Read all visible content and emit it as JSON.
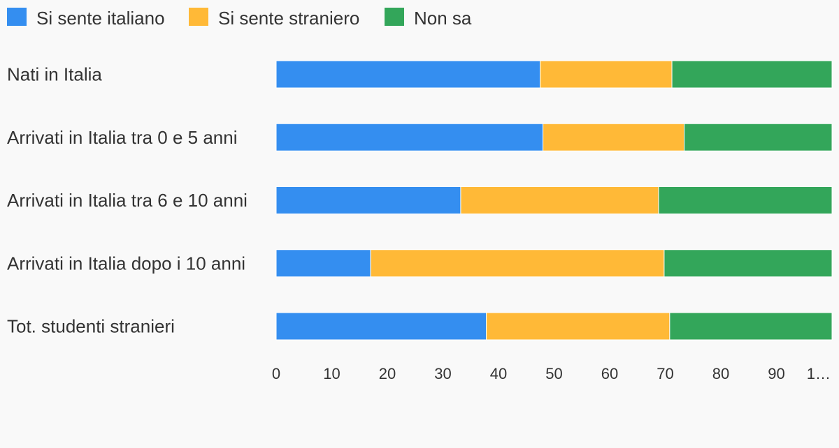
{
  "chart_data": {
    "type": "bar",
    "orientation": "horizontal",
    "stacked": true,
    "categories": [
      "Nati in Italia",
      "Arrivati in Italia tra 0 e 5 anni",
      "Arrivati in Italia tra 6 e 10 anni",
      "Arrivati in Italia dopo i 10 anni",
      "Tot. studenti stranieri"
    ],
    "series": [
      {
        "name": "Si sente italiano",
        "color": "#348ef0",
        "values": [
          47.5,
          48.0,
          33.2,
          17.0,
          37.8
        ]
      },
      {
        "name": "Si sente straniero",
        "color": "#ffb937",
        "values": [
          23.7,
          25.4,
          35.6,
          52.8,
          33.0
        ]
      },
      {
        "name": "Non sa",
        "color": "#33a65a",
        "values": [
          28.8,
          26.6,
          31.2,
          30.2,
          29.2
        ]
      }
    ],
    "xlim": [
      0,
      100
    ],
    "xticks": [
      "0",
      "10",
      "20",
      "30",
      "40",
      "50",
      "60",
      "70",
      "80",
      "90",
      "1…"
    ],
    "legend_position": "top-left",
    "grid": false
  }
}
